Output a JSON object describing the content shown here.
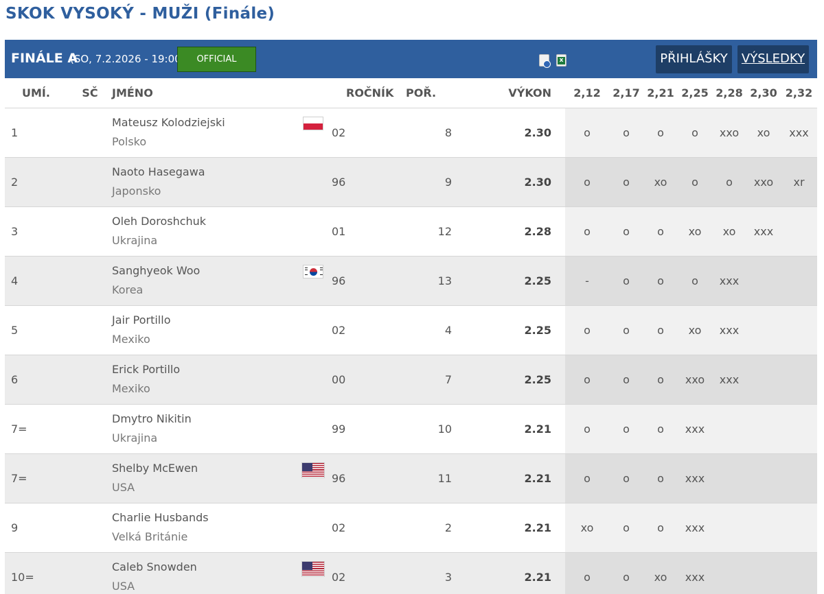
{
  "page": {
    "title": "SKOK VYSOKÝ - MUŽI (Finále)"
  },
  "header_bar": {
    "title": "FINÁLE A",
    "date": "(SO, 7.2.2026 - 19:00)",
    "status": "OFFICIAL",
    "status_color": "#3b8a24",
    "bar_color": "#2f5f9e",
    "icons": [
      "pdf-icon",
      "excel-icon"
    ],
    "buttons": {
      "entries": "PŘIHLÁŠKY",
      "results": "VÝSLEDKY"
    }
  },
  "table": {
    "columns": {
      "rank": "UMÍ.",
      "bib": "SČ",
      "name": "JMÉNO",
      "year": "ROČNÍK",
      "order": "POŘ.",
      "performance": "VÝKON"
    },
    "heights": [
      "2,12",
      "2,17",
      "2,21",
      "2,25",
      "2,28",
      "2,30",
      "2,32"
    ],
    "rows": [
      {
        "rank": "1",
        "bib": "",
        "name": "Mateusz Kolodziejski",
        "country": "Polsko",
        "flag": "pl",
        "year": "02",
        "order": "8",
        "performance": "2.30",
        "attempts": [
          "o",
          "o",
          "o",
          "o",
          "xxo",
          "xo",
          "xxx"
        ]
      },
      {
        "rank": "2",
        "bib": "",
        "name": "Naoto Hasegawa",
        "country": "Japonsko",
        "flag": "",
        "year": "96",
        "order": "9",
        "performance": "2.30",
        "attempts": [
          "o",
          "o",
          "xo",
          "o",
          "o",
          "xxo",
          "xr"
        ]
      },
      {
        "rank": "3",
        "bib": "",
        "name": "Oleh Doroshchuk",
        "country": "Ukrajina",
        "flag": "",
        "year": "01",
        "order": "12",
        "performance": "2.28",
        "attempts": [
          "o",
          "o",
          "o",
          "xo",
          "xo",
          "xxx",
          ""
        ]
      },
      {
        "rank": "4",
        "bib": "",
        "name": "Sanghyeok Woo",
        "country": "Korea",
        "flag": "kr",
        "year": "96",
        "order": "13",
        "performance": "2.25",
        "attempts": [
          "-",
          "o",
          "o",
          "o",
          "xxx",
          "",
          ""
        ]
      },
      {
        "rank": "5",
        "bib": "",
        "name": "Jair Portillo",
        "country": "Mexiko",
        "flag": "",
        "year": "02",
        "order": "4",
        "performance": "2.25",
        "attempts": [
          "o",
          "o",
          "o",
          "xo",
          "xxx",
          "",
          ""
        ]
      },
      {
        "rank": "6",
        "bib": "",
        "name": "Erick Portillo",
        "country": "Mexiko",
        "flag": "",
        "year": "00",
        "order": "7",
        "performance": "2.25",
        "attempts": [
          "o",
          "o",
          "o",
          "xxo",
          "xxx",
          "",
          ""
        ]
      },
      {
        "rank": "7=",
        "bib": "",
        "name": "Dmytro Nikitin",
        "country": "Ukrajina",
        "flag": "",
        "year": "99",
        "order": "10",
        "performance": "2.21",
        "attempts": [
          "o",
          "o",
          "o",
          "xxx",
          "",
          "",
          ""
        ]
      },
      {
        "rank": "7=",
        "bib": "",
        "name": "Shelby McEwen",
        "country": "USA",
        "flag": "us",
        "year": "96",
        "order": "11",
        "performance": "2.21",
        "attempts": [
          "o",
          "o",
          "o",
          "xxx",
          "",
          "",
          ""
        ]
      },
      {
        "rank": "9",
        "bib": "",
        "name": "Charlie Husbands",
        "country": "Velká Británie",
        "flag": "",
        "year": "02",
        "order": "2",
        "performance": "2.21",
        "attempts": [
          "xo",
          "o",
          "o",
          "xxx",
          "",
          "",
          ""
        ]
      },
      {
        "rank": "10=",
        "bib": "",
        "name": "Caleb Snowden",
        "country": "USA",
        "flag": "us",
        "year": "02",
        "order": "3",
        "performance": "2.21",
        "attempts": [
          "o",
          "o",
          "xo",
          "xxx",
          "",
          "",
          ""
        ]
      }
    ]
  }
}
